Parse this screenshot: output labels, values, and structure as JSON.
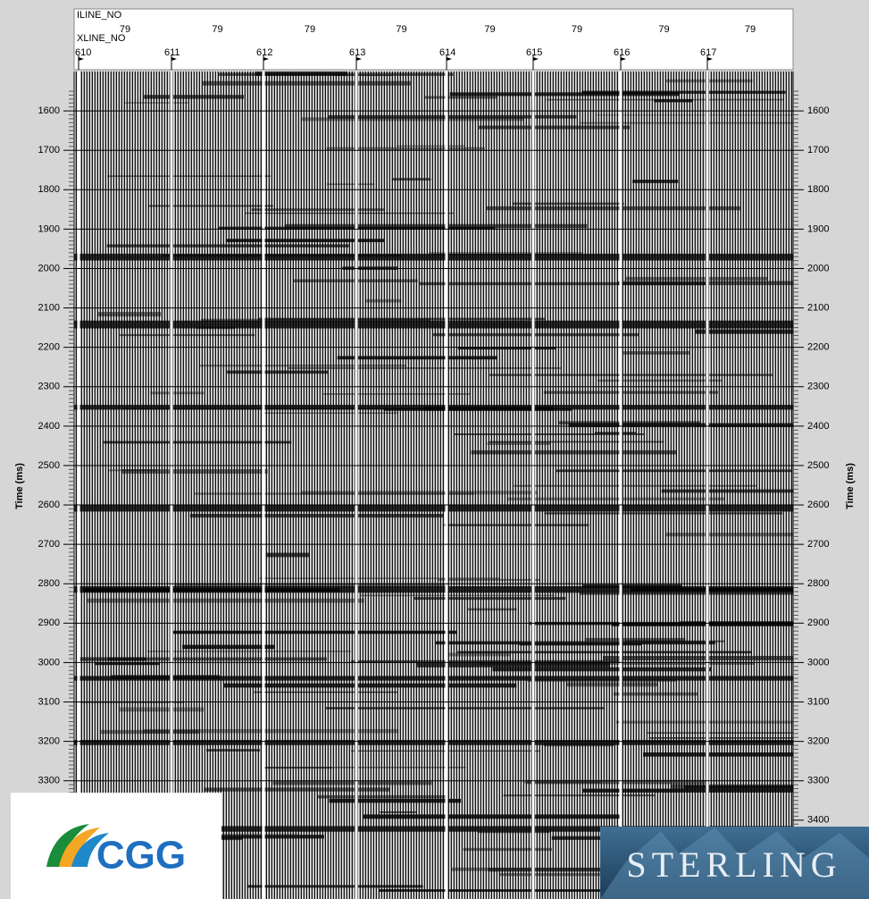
{
  "header": {
    "iline_label": "ILINE_NO",
    "xline_label": "XLINE_NO",
    "iline_values": [
      "79",
      "79",
      "79",
      "79",
      "79",
      "79",
      "79",
      "79"
    ],
    "xline_values": [
      "610",
      "611",
      "612",
      "613",
      "614",
      "615",
      "616",
      "617"
    ]
  },
  "time_axis": {
    "label": "Time (ms)",
    "range": [
      1500,
      3600
    ],
    "left_ticks": [
      1600,
      1700,
      1800,
      1900,
      2000,
      2100,
      2200,
      2300,
      2400,
      2500,
      2600,
      2700,
      2800,
      2900,
      3000,
      3100,
      3200,
      3300
    ],
    "right_ticks": [
      1600,
      1700,
      1800,
      1900,
      2000,
      2100,
      2200,
      2300,
      2400,
      2500,
      2600,
      2700,
      2800,
      2900,
      3000,
      3100,
      3200,
      3300,
      3400
    ]
  },
  "logos": {
    "left": "CGG",
    "right": "STERLING"
  }
}
